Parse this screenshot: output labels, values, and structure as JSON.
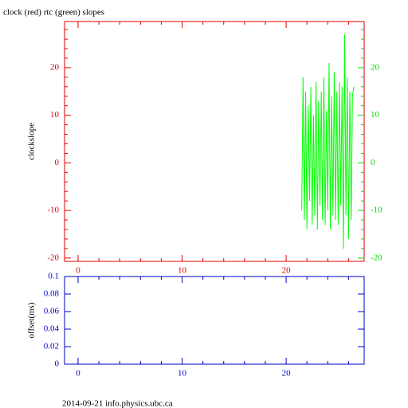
{
  "chart_data": [
    {
      "type": "line",
      "title": "clock (red) rtc (green) slopes",
      "ylabel": "clockslope",
      "xlim": [
        -1.3,
        27.5
      ],
      "xticks": [
        0,
        10,
        20
      ],
      "xminorticks": [
        2,
        4,
        6,
        8,
        12,
        14,
        16,
        18,
        22,
        24,
        26
      ],
      "ylim": [
        -20.7,
        29.7
      ],
      "yticks": [
        -20,
        -10,
        0,
        10,
        20
      ],
      "yminorticks": [
        -18,
        -16,
        -14,
        -12,
        -8,
        -6,
        -4,
        -2,
        2,
        4,
        6,
        8,
        12,
        14,
        16,
        18,
        22,
        24,
        26,
        28
      ],
      "y2lim": [
        -20.7,
        29.7
      ],
      "y2ticks": [
        -20,
        -10,
        0,
        10,
        20
      ],
      "axis_color": "#dd0000",
      "y2_color": "#00dd00",
      "series": [
        {
          "color": "#00ff00",
          "axis": "y2",
          "x": [
            21.5,
            21.625,
            21.75,
            21.875,
            22,
            22.125,
            22.25,
            22.375,
            22.5,
            22.625,
            22.75,
            22.875,
            23,
            23.125,
            23.25,
            23.375,
            23.5,
            23.625,
            23.75,
            23.875,
            24,
            24.125,
            24.25,
            24.375,
            24.5,
            24.625,
            24.75,
            24.875,
            25,
            25.125,
            25.25,
            25.375,
            25.5,
            25.625,
            25.75,
            25.875,
            26,
            26.125,
            26.25,
            26.375,
            26.5
          ],
          "values": [
            -10,
            18,
            -12,
            15,
            -14,
            12,
            -8,
            16,
            -13,
            10,
            -11,
            17,
            -14,
            13,
            -9,
            15,
            -12,
            18,
            -13,
            11,
            -10,
            21,
            -14,
            14,
            -11,
            19,
            -12,
            15,
            -13,
            17,
            -9,
            16,
            -18,
            27,
            -11,
            18,
            -16,
            15,
            -12,
            14,
            16
          ]
        }
      ]
    },
    {
      "type": "line",
      "ylabel": "offset(ms)",
      "xlim": [
        -1.3,
        27.5
      ],
      "xticks": [
        0,
        10,
        20
      ],
      "xminorticks": [
        2,
        4,
        6,
        8,
        12,
        14,
        16,
        18,
        22,
        24,
        26
      ],
      "ylim": [
        0,
        0.1
      ],
      "yticks": [
        0,
        0.02,
        0.04,
        0.06,
        0.08,
        0.1
      ],
      "axis_color": "#0000cc",
      "series": []
    }
  ],
  "footer": "2014-09-21 info.physics.ubc.ca"
}
